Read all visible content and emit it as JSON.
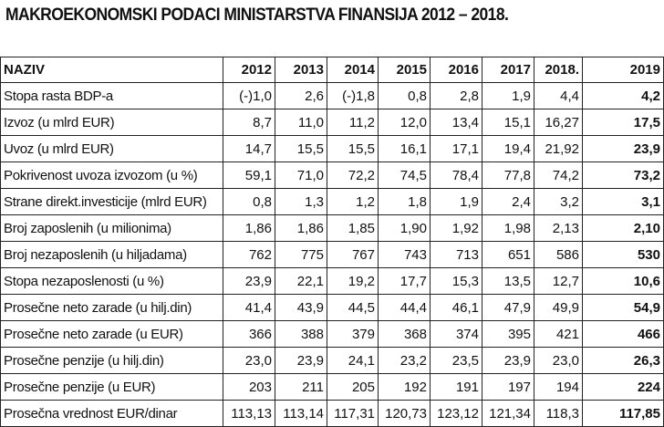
{
  "title": "MAKROEKONOMSKI PODACI MINISTARSTVA FINANSIJA 2012 – 2018.",
  "table": {
    "header": [
      "NAZIV",
      "2012",
      "2013",
      "2014",
      "2015",
      "2016",
      "2017",
      "2018.",
      "2019"
    ],
    "rows": [
      [
        "Stopa rasta BDP-a",
        "(-)1,0",
        "2,6",
        "(-)1,8",
        "0,8",
        "2,8",
        "1,9",
        "4,4",
        "4,2"
      ],
      [
        "Izvoz (u mlrd EUR)",
        "8,7",
        "11,0",
        "11,2",
        "12,0",
        "13,4",
        "15,1",
        "16,27",
        "17,5"
      ],
      [
        "Uvoz (u mlrd EUR)",
        "14,7",
        "15,5",
        "15,5",
        "16,1",
        "17,1",
        "19,4",
        "21,92",
        "23,9"
      ],
      [
        "Pokrivenost uvoza izvozom (u %)",
        "59,1",
        "71,0",
        "72,2",
        "74,5",
        "78,4",
        "77,8",
        "74,2",
        "73,2"
      ],
      [
        "Strane direkt.investicije (mlrd EUR)",
        "0,8",
        "1,3",
        "1,2",
        "1,8",
        "1,9",
        "2,4",
        "3,2",
        "3,1"
      ],
      [
        "Broj zaposlenih (u milionima)",
        "1,86",
        "1,86",
        "1,85",
        "1,90",
        "1,92",
        "1,98",
        "2,13",
        "2,10"
      ],
      [
        "Broj nezaposlenih (u hiljadama)",
        "762",
        "775",
        "767",
        "743",
        "713",
        "651",
        "586",
        "530"
      ],
      [
        "Stopa nezaposlenosti (u %)",
        "23,9",
        "22,1",
        "19,2",
        "17,7",
        "15,3",
        "13,5",
        "12,7",
        "10,6"
      ],
      [
        "Prosečne neto zarade (u hilj.din)",
        "41,4",
        "43,9",
        "44,5",
        "44,4",
        "46,1",
        "47,9",
        "49,9",
        "54,9"
      ],
      [
        "Prosečne neto zarade (u EUR)",
        "366",
        "388",
        "379",
        "368",
        "374",
        "395",
        "421",
        "466"
      ],
      [
        "Prosečne penzije (u hilj.din)",
        "23,0",
        "23,9",
        "24,1",
        "23,2",
        "23,5",
        "23,9",
        "23,0",
        "26,3"
      ],
      [
        "Prosečne penzije (u EUR)",
        "203",
        "211",
        "205",
        "192",
        "191",
        "197",
        "194",
        "224"
      ],
      [
        "Prosečna vrednost EUR/dinar",
        "113,13",
        "113,14",
        "117,31",
        "120,73",
        "123,12",
        "121,34",
        "118,3",
        "117,85"
      ]
    ]
  }
}
